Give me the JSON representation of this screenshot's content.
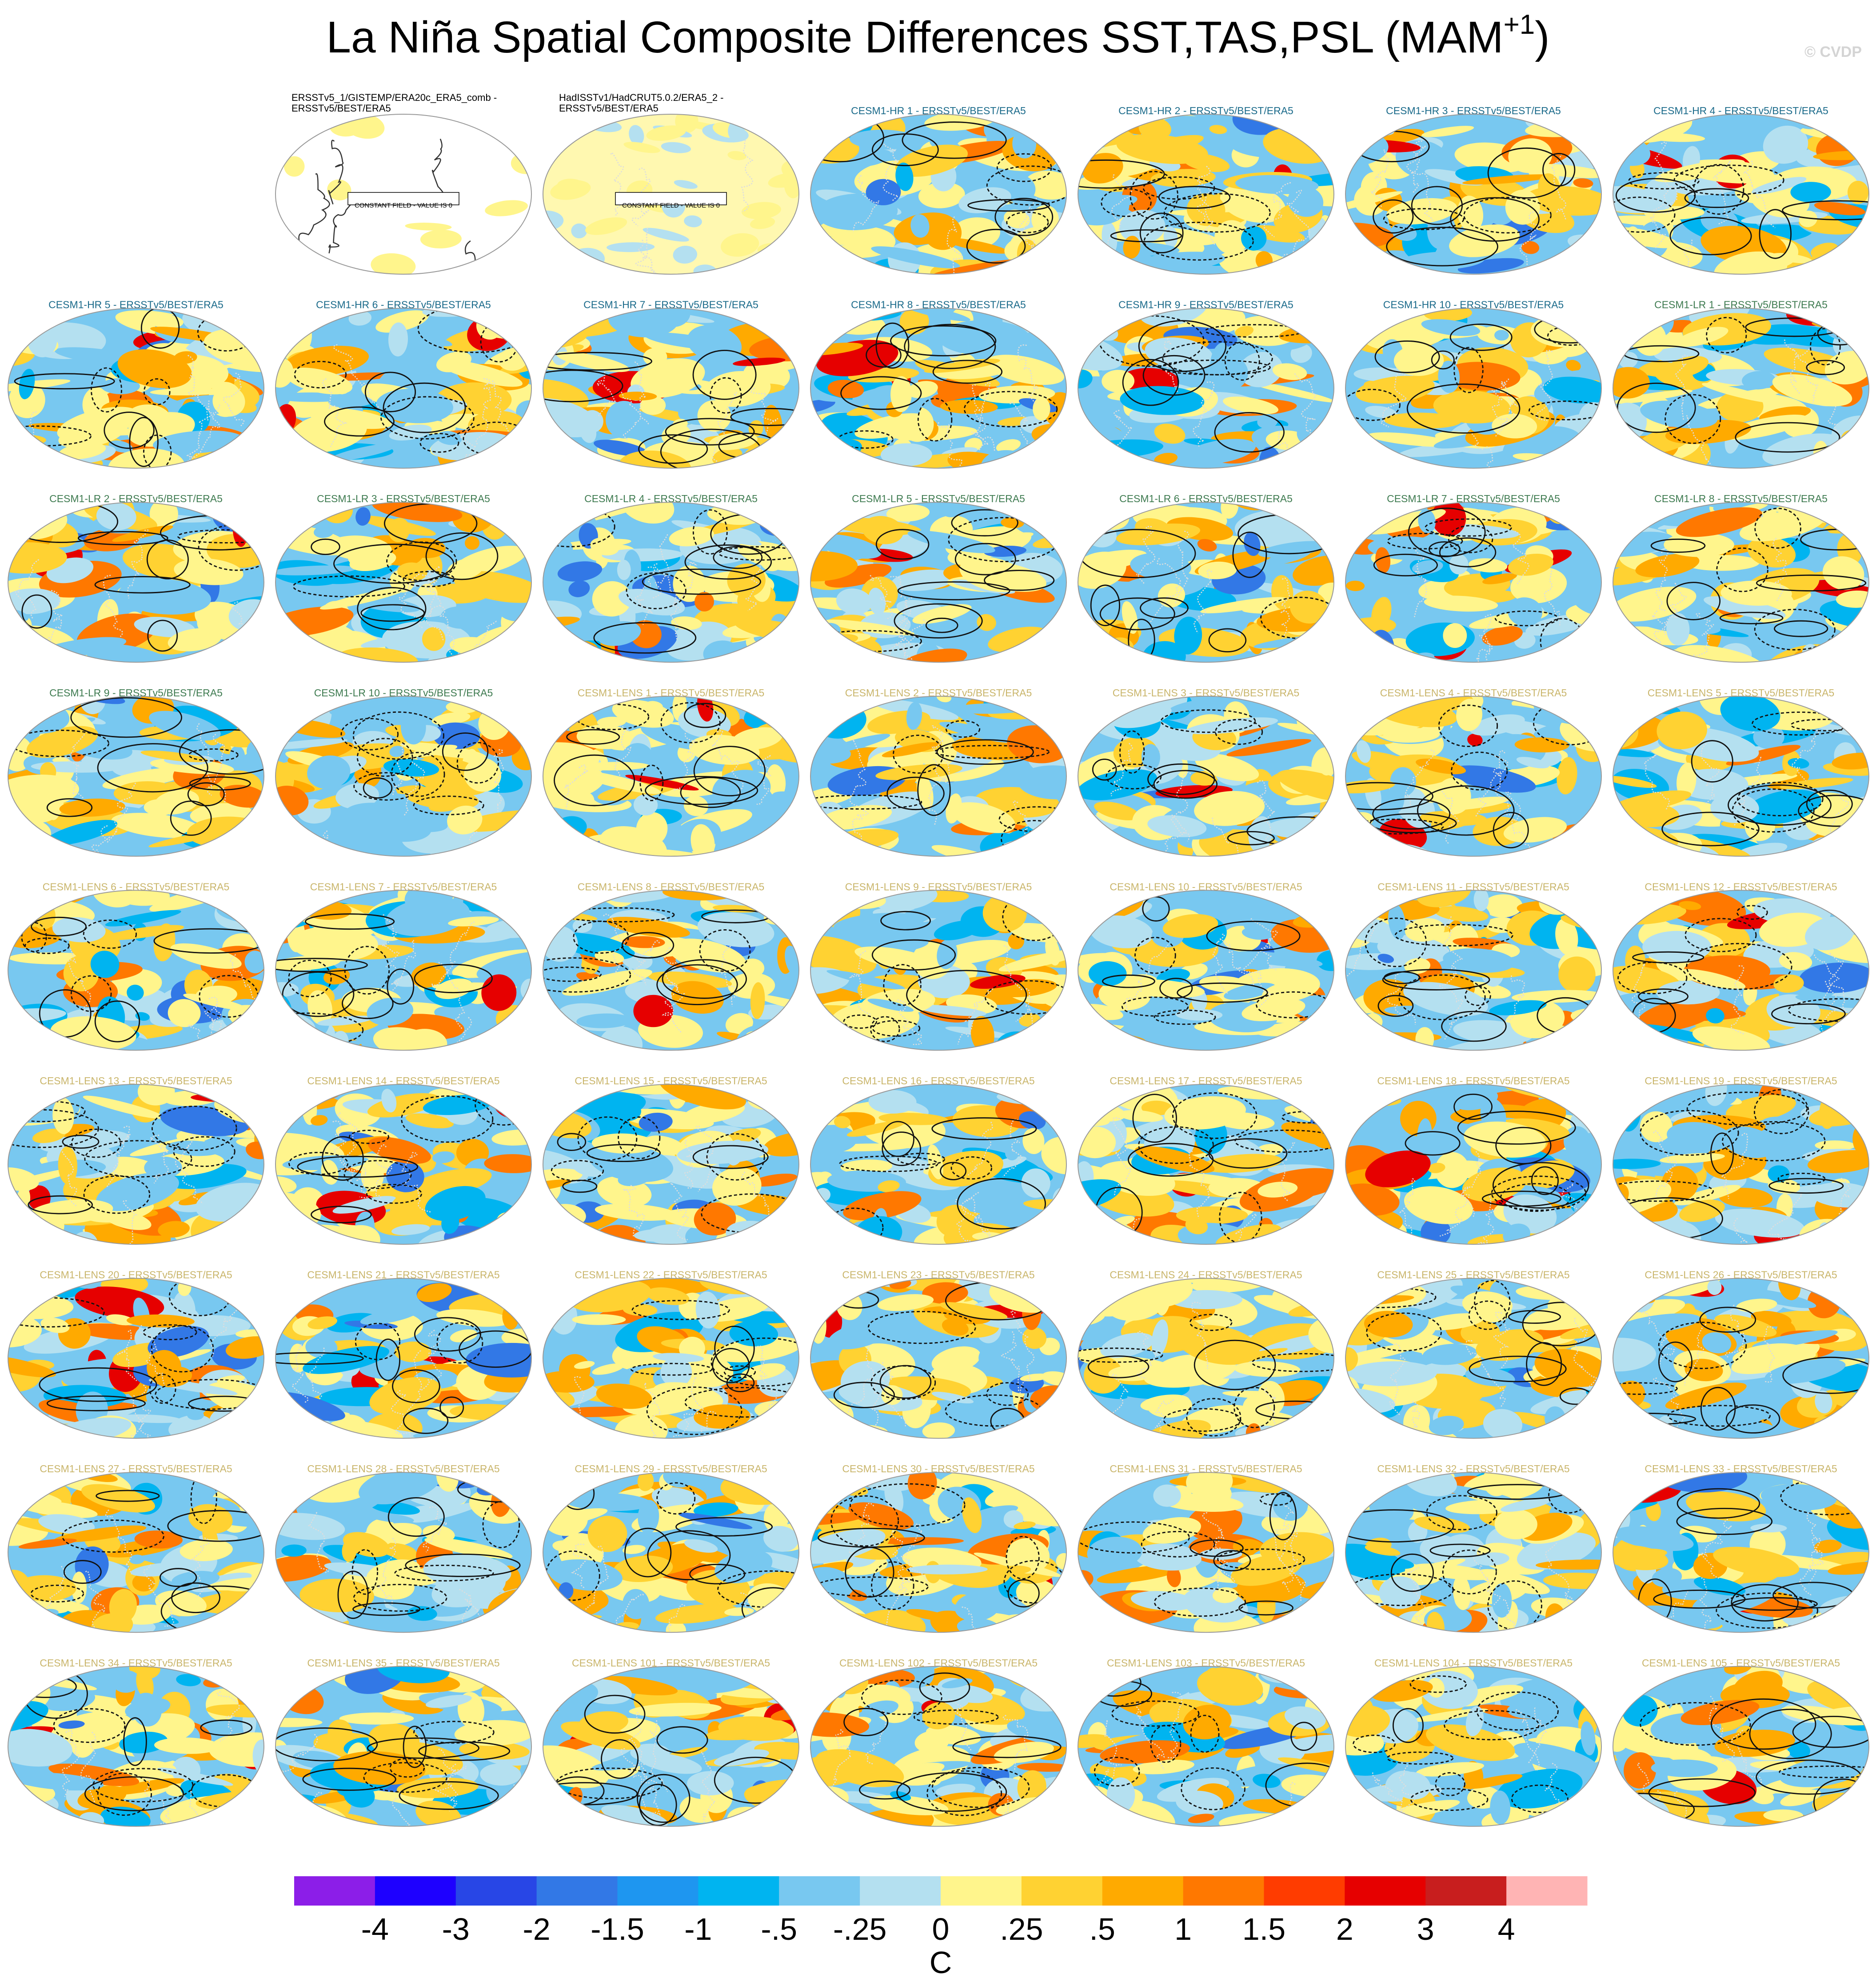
{
  "title": {
    "main": "La Niña Spatial Composite Differences SST,TAS,PSL (MAM",
    "superscript": "+1",
    "end": ")"
  },
  "copyright": "© CVDP",
  "panels": [
    {
      "title": [
        "ERSSTv5_1/GISTEMP/ERA20c_ERA5_comb -",
        "ERSSTv5/BEST/ERA5"
      ],
      "color": "#000000",
      "note": "CONSTANT FIELD - VALUE IS 0"
    },
    {
      "title": [
        "HadISSTv1/HadCRUT5.0.2/ERA5_2 -",
        "ERSSTv5/BEST/ERA5"
      ],
      "color": "#000000",
      "note": "CONSTANT FIELD - VALUE IS 0"
    },
    {
      "title": "CESM1-HR 1 - ERSSTv5/BEST/ERA5",
      "color": "#1a6a8a"
    },
    {
      "title": "CESM1-HR 2 - ERSSTv5/BEST/ERA5",
      "color": "#1a6a8a"
    },
    {
      "title": "CESM1-HR 3 - ERSSTv5/BEST/ERA5",
      "color": "#1a6a8a"
    },
    {
      "title": "CESM1-HR 4 - ERSSTv5/BEST/ERA5",
      "color": "#1a6a8a"
    },
    {
      "title": "CESM1-HR 5 - ERSSTv5/BEST/ERA5",
      "color": "#1a6a8a"
    },
    {
      "title": "CESM1-HR 6 - ERSSTv5/BEST/ERA5",
      "color": "#1a6a8a"
    },
    {
      "title": "CESM1-HR 7 - ERSSTv5/BEST/ERA5",
      "color": "#1a6a8a"
    },
    {
      "title": "CESM1-HR 8 - ERSSTv5/BEST/ERA5",
      "color": "#1a6a8a"
    },
    {
      "title": "CESM1-HR 9 - ERSSTv5/BEST/ERA5",
      "color": "#1a6a8a"
    },
    {
      "title": "CESM1-HR 10 - ERSSTv5/BEST/ERA5",
      "color": "#1a6a8a"
    },
    {
      "title": "CESM1-LR 1 - ERSSTv5/BEST/ERA5",
      "color": "#3d7a4f"
    },
    {
      "title": "CESM1-LR 2 - ERSSTv5/BEST/ERA5",
      "color": "#3d7a4f"
    },
    {
      "title": "CESM1-LR 3 - ERSSTv5/BEST/ERA5",
      "color": "#3d7a4f"
    },
    {
      "title": "CESM1-LR 4 - ERSSTv5/BEST/ERA5",
      "color": "#3d7a4f"
    },
    {
      "title": "CESM1-LR 5 - ERSSTv5/BEST/ERA5",
      "color": "#3d7a4f"
    },
    {
      "title": "CESM1-LR 6 - ERSSTv5/BEST/ERA5",
      "color": "#3d7a4f"
    },
    {
      "title": "CESM1-LR 7 - ERSSTv5/BEST/ERA5",
      "color": "#3d7a4f"
    },
    {
      "title": "CESM1-LR 8 - ERSSTv5/BEST/ERA5",
      "color": "#3d7a4f"
    },
    {
      "title": "CESM1-LR 9 - ERSSTv5/BEST/ERA5",
      "color": "#3d7a4f"
    },
    {
      "title": "CESM1-LR 10 - ERSSTv5/BEST/ERA5",
      "color": "#3d7a4f"
    },
    {
      "title": "CESM1-LENS 1 - ERSSTv5/BEST/ERA5",
      "color": "#c9b56a"
    },
    {
      "title": "CESM1-LENS 2 - ERSSTv5/BEST/ERA5",
      "color": "#c9b56a"
    },
    {
      "title": "CESM1-LENS 3 - ERSSTv5/BEST/ERA5",
      "color": "#c9b56a"
    },
    {
      "title": "CESM1-LENS 4 - ERSSTv5/BEST/ERA5",
      "color": "#c9b56a"
    },
    {
      "title": "CESM1-LENS 5 - ERSSTv5/BEST/ERA5",
      "color": "#c9b56a"
    },
    {
      "title": "CESM1-LENS 6 - ERSSTv5/BEST/ERA5",
      "color": "#c9b56a"
    },
    {
      "title": "CESM1-LENS 7 - ERSSTv5/BEST/ERA5",
      "color": "#c9b56a"
    },
    {
      "title": "CESM1-LENS 8 - ERSSTv5/BEST/ERA5",
      "color": "#c9b56a"
    },
    {
      "title": "CESM1-LENS 9 - ERSSTv5/BEST/ERA5",
      "color": "#c9b56a"
    },
    {
      "title": "CESM1-LENS 10 - ERSSTv5/BEST/ERA5",
      "color": "#c9b56a"
    },
    {
      "title": "CESM1-LENS 11 - ERSSTv5/BEST/ERA5",
      "color": "#c9b56a"
    },
    {
      "title": "CESM1-LENS 12 - ERSSTv5/BEST/ERA5",
      "color": "#c9b56a"
    },
    {
      "title": "CESM1-LENS 13 - ERSSTv5/BEST/ERA5",
      "color": "#c9b56a"
    },
    {
      "title": "CESM1-LENS 14 - ERSSTv5/BEST/ERA5",
      "color": "#c9b56a"
    },
    {
      "title": "CESM1-LENS 15 - ERSSTv5/BEST/ERA5",
      "color": "#c9b56a"
    },
    {
      "title": "CESM1-LENS 16 - ERSSTv5/BEST/ERA5",
      "color": "#c9b56a"
    },
    {
      "title": "CESM1-LENS 17 - ERSSTv5/BEST/ERA5",
      "color": "#c9b56a"
    },
    {
      "title": "CESM1-LENS 18 - ERSSTv5/BEST/ERA5",
      "color": "#c9b56a"
    },
    {
      "title": "CESM1-LENS 19 - ERSSTv5/BEST/ERA5",
      "color": "#c9b56a"
    },
    {
      "title": "CESM1-LENS 20 - ERSSTv5/BEST/ERA5",
      "color": "#c9b56a"
    },
    {
      "title": "CESM1-LENS 21 - ERSSTv5/BEST/ERA5",
      "color": "#c9b56a"
    },
    {
      "title": "CESM1-LENS 22 - ERSSTv5/BEST/ERA5",
      "color": "#c9b56a"
    },
    {
      "title": "CESM1-LENS 23 - ERSSTv5/BEST/ERA5",
      "color": "#c9b56a"
    },
    {
      "title": "CESM1-LENS 24 - ERSSTv5/BEST/ERA5",
      "color": "#c9b56a"
    },
    {
      "title": "CESM1-LENS 25 - ERSSTv5/BEST/ERA5",
      "color": "#c9b56a"
    },
    {
      "title": "CESM1-LENS 26 - ERSSTv5/BEST/ERA5",
      "color": "#c9b56a"
    },
    {
      "title": "CESM1-LENS 27 - ERSSTv5/BEST/ERA5",
      "color": "#c9b56a"
    },
    {
      "title": "CESM1-LENS 28 - ERSSTv5/BEST/ERA5",
      "color": "#c9b56a"
    },
    {
      "title": "CESM1-LENS 29 - ERSSTv5/BEST/ERA5",
      "color": "#c9b56a"
    },
    {
      "title": "CESM1-LENS 30 - ERSSTv5/BEST/ERA5",
      "color": "#c9b56a"
    },
    {
      "title": "CESM1-LENS 31 - ERSSTv5/BEST/ERA5",
      "color": "#c9b56a"
    },
    {
      "title": "CESM1-LENS 32 - ERSSTv5/BEST/ERA5",
      "color": "#c9b56a"
    },
    {
      "title": "CESM1-LENS 33 - ERSSTv5/BEST/ERA5",
      "color": "#c9b56a"
    },
    {
      "title": "CESM1-LENS 34 - ERSSTv5/BEST/ERA5",
      "color": "#c9b56a"
    },
    {
      "title": "CESM1-LENS 35 - ERSSTv5/BEST/ERA5",
      "color": "#c9b56a"
    },
    {
      "title": "CESM1-LENS 101 - ERSSTv5/BEST/ERA5",
      "color": "#c9b56a"
    },
    {
      "title": "CESM1-LENS 102 - ERSSTv5/BEST/ERA5",
      "color": "#c9b56a"
    },
    {
      "title": "CESM1-LENS 103 - ERSSTv5/BEST/ERA5",
      "color": "#c9b56a"
    },
    {
      "title": "CESM1-LENS 104 - ERSSTv5/BEST/ERA5",
      "color": "#c9b56a"
    },
    {
      "title": "CESM1-LENS 105 - ERSSTv5/BEST/ERA5",
      "color": "#c9b56a"
    }
  ],
  "colorbar": {
    "colors": [
      "#8c1ee8",
      "#1e00ff",
      "#2846e6",
      "#3278e6",
      "#1e96f0",
      "#00b4f0",
      "#78c8f0",
      "#b4e0f0",
      "#fff58c",
      "#ffd232",
      "#ffaa00",
      "#ff7800",
      "#ff3c00",
      "#e60000",
      "#c81e1e",
      "#ffb4b4"
    ],
    "ticks": [
      -4,
      -3,
      -2,
      -1.5,
      -1,
      {
        "value": -0.5,
        "label": "-.5"
      },
      {
        "value": -0.25,
        "label": "-.25"
      },
      0,
      {
        "value": 0.25,
        "label": ".25"
      },
      {
        "value": 0.5,
        "label": ".5"
      },
      1,
      1.5,
      2,
      3,
      4
    ],
    "unit": "C"
  }
}
